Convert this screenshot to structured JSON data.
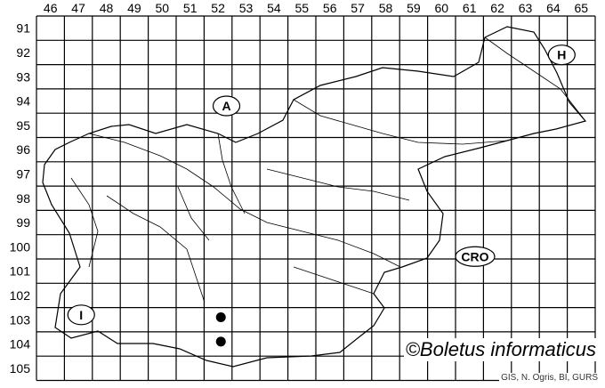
{
  "grid": {
    "columns": [
      "46",
      "47",
      "48",
      "49",
      "50",
      "51",
      "52",
      "53",
      "54",
      "55",
      "56",
      "57",
      "58",
      "59",
      "60",
      "61",
      "62",
      "63",
      "64",
      "65"
    ],
    "rows": [
      "91",
      "92",
      "93",
      "94",
      "95",
      "96",
      "97",
      "98",
      "99",
      "100",
      "101",
      "102",
      "103",
      "104",
      "105"
    ]
  },
  "countries": [
    {
      "code": "A",
      "col": 52.3,
      "row": 94.2
    },
    {
      "code": "H",
      "col": 64.3,
      "row": 92.1
    },
    {
      "code": "CRO",
      "col": 61.2,
      "row": 100.4
    },
    {
      "code": "I",
      "col": 47.1,
      "row": 102.8
    }
  ],
  "records": [
    {
      "col": 52.1,
      "row": 102.9
    },
    {
      "col": 52.1,
      "row": 103.9
    }
  ],
  "credit": "©Boletus informaticus",
  "source": "GIS, N. Ogris, BI, GURS",
  "colors": {
    "grid": "#000000",
    "border": "#000000",
    "record": "#000000"
  }
}
